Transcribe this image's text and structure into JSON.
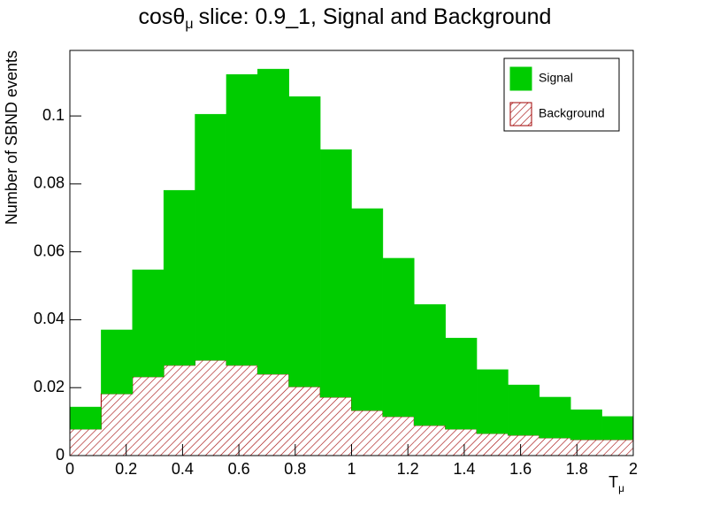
{
  "chart_data": {
    "type": "stacked-histogram",
    "title": "cosθ",
    "title_sub": "μ",
    "title_rest": "slice: 0.9_1, Signal and Background",
    "ylabel": "Number of SBND events",
    "xlabel": "T",
    "xlabel_sub": "μ",
    "bins": [
      0,
      0.1111,
      0.2222,
      0.3333,
      0.4444,
      0.5556,
      0.6667,
      0.7778,
      0.8889,
      1,
      1.1111,
      1.2222,
      1.3333,
      1.4444,
      1.5556,
      1.6667,
      1.7778,
      1.8889,
      2
    ],
    "series": [
      {
        "name": "Background",
        "color": "#a00000",
        "hatch": true,
        "values": [
          0.0078,
          0.0182,
          0.0232,
          0.0266,
          0.0281,
          0.0266,
          0.024,
          0.0203,
          0.0172,
          0.0133,
          0.0115,
          0.0089,
          0.0078,
          0.0065,
          0.006,
          0.0052,
          0.0047,
          0.0047
        ]
      },
      {
        "name": "Signal",
        "color": "#00cc00",
        "hatch": false,
        "values": [
          0.0065,
          0.0188,
          0.0315,
          0.0515,
          0.0724,
          0.0856,
          0.0898,
          0.0854,
          0.0729,
          0.0594,
          0.0466,
          0.0356,
          0.0268,
          0.0188,
          0.0148,
          0.012,
          0.0088,
          0.0068
        ]
      }
    ],
    "xlim": [
      0,
      2
    ],
    "xticks": [
      0,
      0.2,
      0.4,
      0.6,
      0.8,
      1,
      1.2,
      1.4,
      1.6,
      1.8,
      2
    ],
    "ylim": [
      0,
      0.1193
    ],
    "yticks": [
      0,
      0.02,
      0.04,
      0.06,
      0.08,
      0.1
    ],
    "legend": "top-right",
    "legend_order": [
      1,
      0
    ]
  }
}
